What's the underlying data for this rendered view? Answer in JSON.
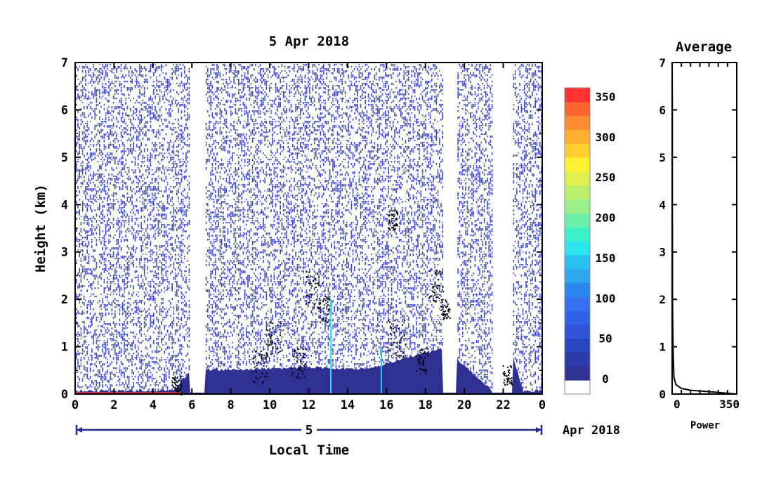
{
  "chart_data": [
    {
      "type": "heatmap",
      "title": "5 Apr 2018",
      "xlabel": "Local Time",
      "ylabel": "Height (km)",
      "x_ticks": [
        "0",
        "2",
        "4",
        "6",
        "8",
        "10",
        "12",
        "14",
        "16",
        "18",
        "20",
        "22",
        "0"
      ],
      "y_ticks": [
        "0",
        "1",
        "2",
        "3",
        "4",
        "5",
        "6",
        "7"
      ],
      "xlim": [
        0,
        24
      ],
      "ylim": [
        0,
        7
      ],
      "date_bar": {
        "day": "5",
        "month_year": "Apr 2018"
      },
      "colorbar": {
        "ticks": [
          "0",
          "50",
          "100",
          "150",
          "200",
          "250",
          "300",
          "350"
        ],
        "range": [
          0,
          380
        ],
        "colors": [
          "#ffffff",
          "#2e3192",
          "#2b3aa8",
          "#2a45c0",
          "#2e52d8",
          "#2f62e8",
          "#3570f0",
          "#2a86ee",
          "#2ca6ee",
          "#29c2ee",
          "#2ee6f0",
          "#3cf0c8",
          "#6cf0a8",
          "#9cf08c",
          "#bcf06c",
          "#e0f050",
          "#fff030",
          "#ffd030",
          "#ffb030",
          "#ff8c30",
          "#ff6430",
          "#ff3030"
        ],
        "range_values": [
          0,
          380
        ]
      },
      "data_gaps_hours": [
        [
          5.9,
          6.7
        ],
        [
          18.9,
          19.6
        ],
        [
          21.4,
          22.5
        ]
      ],
      "surface_layer": [
        {
          "x": 0.0,
          "top_km": 0.1
        },
        {
          "x": 5.0,
          "top_km": 0.1
        },
        {
          "x": 6.0,
          "top_km": 0.55
        },
        {
          "x": 9.0,
          "top_km": 0.55
        },
        {
          "x": 12.0,
          "top_km": 0.6
        },
        {
          "x": 15.0,
          "top_km": 0.55
        },
        {
          "x": 17.0,
          "top_km": 0.8
        },
        {
          "x": 19.0,
          "top_km": 1.0
        },
        {
          "x": 21.4,
          "top_km": 0.1
        },
        {
          "x": 22.5,
          "top_km": 0.85
        },
        {
          "x": 23.0,
          "top_km": 0.1
        },
        {
          "x": 24.0,
          "top_km": 0.1
        }
      ]
    },
    {
      "type": "line",
      "title": "Average",
      "xlabel": "Power",
      "x_ticks": [
        "0",
        "350"
      ],
      "y_ticks": [
        "0",
        "1",
        "2",
        "3",
        "4",
        "5",
        "6",
        "7"
      ],
      "xlim": [
        0,
        350
      ],
      "ylim": [
        0,
        7
      ],
      "series": [
        {
          "x": [
            350,
            200,
            100,
            50,
            20,
            10,
            6,
            4,
            3,
            2,
            2,
            1,
            1,
            1,
            0
          ],
          "y": [
            0.0,
            0.05,
            0.08,
            0.12,
            0.2,
            0.35,
            0.8,
            1.2,
            1.6,
            2.0,
            3.0,
            4.0,
            5.0,
            6.0,
            7.0
          ]
        }
      ]
    }
  ]
}
